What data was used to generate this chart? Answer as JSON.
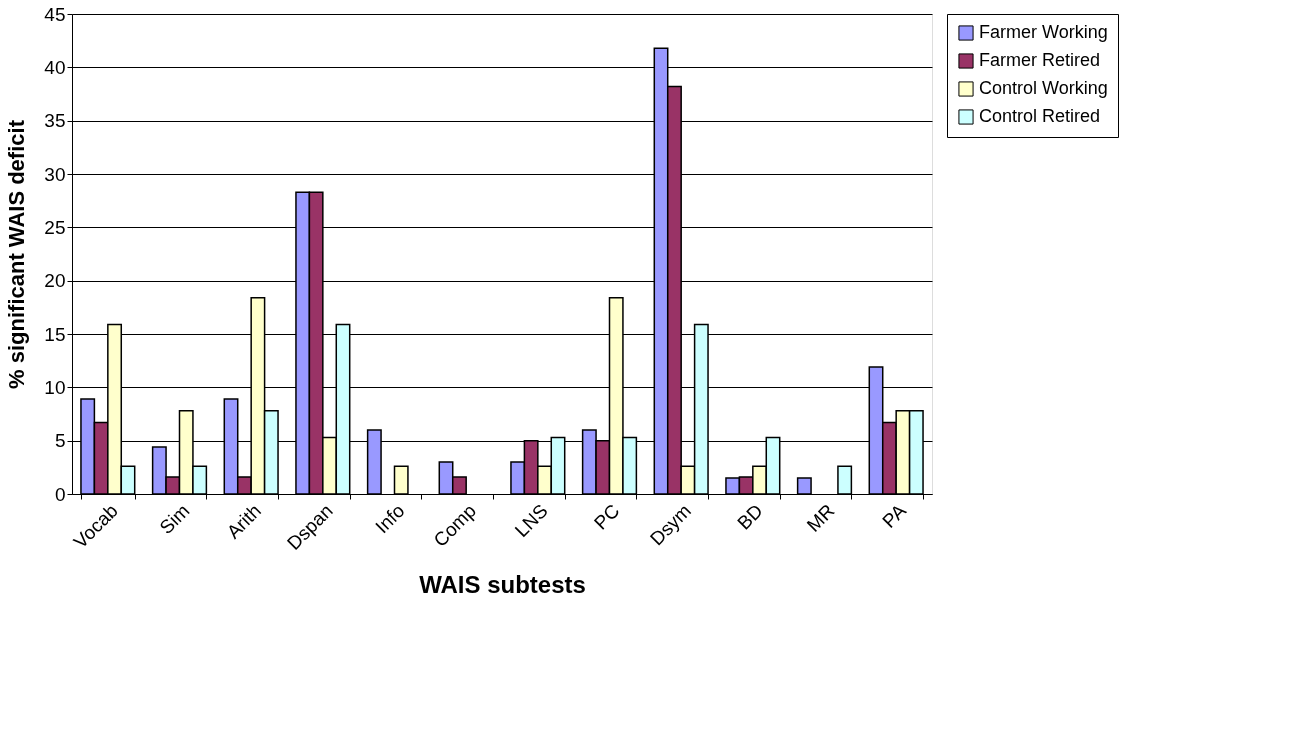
{
  "chart_data": {
    "type": "bar",
    "xlabel": "WAIS subtests",
    "ylabel": "% significant WAIS deficit",
    "categories": [
      "Vocab",
      "Sim",
      "Arith",
      "Dspan",
      "Info",
      "Comp",
      "LNS",
      "PC",
      "Dsym",
      "BD",
      "MR",
      "PA"
    ],
    "series": [
      {
        "name": "Farmer Working",
        "color": "#9999ff",
        "values": [
          8.9,
          4.4,
          8.9,
          28.3,
          6.0,
          3.0,
          3.0,
          6.0,
          41.8,
          1.5,
          1.5,
          11.9
        ]
      },
      {
        "name": "Farmer Retired",
        "color": "#993366",
        "values": [
          6.7,
          1.6,
          1.6,
          28.3,
          null,
          1.6,
          5.0,
          5.0,
          38.2,
          1.6,
          null,
          6.7
        ]
      },
      {
        "name": "Control Working",
        "color": "#ffffcc",
        "values": [
          15.9,
          7.8,
          18.4,
          5.3,
          2.6,
          null,
          2.6,
          18.4,
          2.6,
          2.6,
          null,
          7.8
        ]
      },
      {
        "name": "Control Retired",
        "color": "#ccffff",
        "values": [
          2.6,
          2.6,
          7.8,
          15.9,
          null,
          null,
          5.3,
          5.3,
          15.9,
          5.3,
          2.6,
          7.8
        ]
      }
    ],
    "ylim": [
      0,
      45
    ],
    "yticks": [
      0,
      5,
      10,
      15,
      20,
      25,
      30,
      35,
      40,
      45
    ],
    "grid": "y",
    "legend": "right"
  }
}
